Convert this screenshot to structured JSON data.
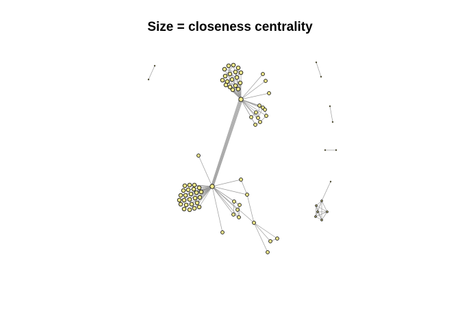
{
  "title": "Size = closeness centrality",
  "colors": {
    "node_fill": "#f2ea8c",
    "node_stroke": "#111111",
    "edge": "#9a9a9a",
    "title": "#000000",
    "background": "#ffffff"
  }
}
